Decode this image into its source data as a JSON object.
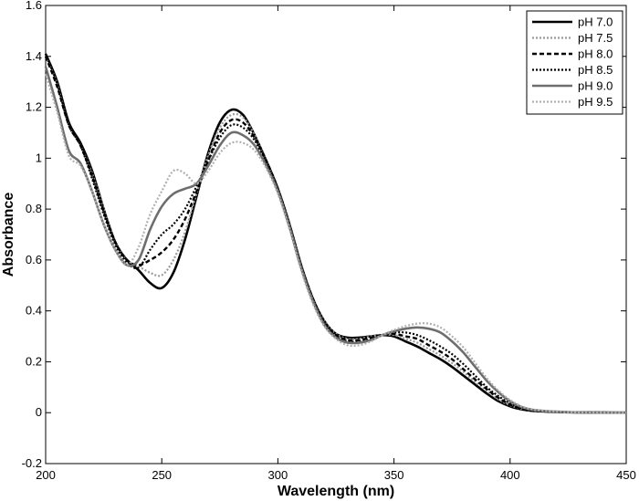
{
  "chart_data": {
    "type": "line",
    "xlabel": "Wavelength (nm)",
    "ylabel": "Absorbance",
    "xlim": [
      200,
      450
    ],
    "ylim": [
      -0.2,
      1.6
    ],
    "xticks": [
      200,
      250,
      300,
      350,
      400,
      450
    ],
    "yticks": [
      -0.2,
      0,
      0.2,
      0.4,
      0.6,
      0.8,
      1,
      1.2,
      1.4,
      1.6
    ],
    "ytick_labels": [
      "-0.2",
      "0",
      "0.2",
      "0.4",
      "0.6",
      "0.8",
      "1",
      "1.2",
      "1.4",
      "1.6"
    ],
    "grid": false,
    "legend_position": "top-right",
    "series": [
      {
        "name": "pH 7.0",
        "color": "#000000",
        "style": "solid",
        "points": [
          [
            200,
            1.41
          ],
          [
            205,
            1.3
          ],
          [
            210,
            1.14
          ],
          [
            215,
            1.06
          ],
          [
            220,
            0.95
          ],
          [
            225,
            0.8
          ],
          [
            230,
            0.67
          ],
          [
            235,
            0.6
          ],
          [
            240,
            0.56
          ],
          [
            245,
            0.51
          ],
          [
            250,
            0.49
          ],
          [
            255,
            0.55
          ],
          [
            260,
            0.68
          ],
          [
            265,
            0.85
          ],
          [
            270,
            1.02
          ],
          [
            275,
            1.14
          ],
          [
            280,
            1.19
          ],
          [
            285,
            1.17
          ],
          [
            290,
            1.09
          ],
          [
            295,
            0.99
          ],
          [
            300,
            0.88
          ],
          [
            305,
            0.74
          ],
          [
            310,
            0.58
          ],
          [
            315,
            0.45
          ],
          [
            320,
            0.36
          ],
          [
            325,
            0.31
          ],
          [
            330,
            0.295
          ],
          [
            335,
            0.295
          ],
          [
            340,
            0.3
          ],
          [
            345,
            0.305
          ],
          [
            350,
            0.3
          ],
          [
            355,
            0.28
          ],
          [
            360,
            0.26
          ],
          [
            365,
            0.235
          ],
          [
            370,
            0.21
          ],
          [
            375,
            0.18
          ],
          [
            380,
            0.145
          ],
          [
            385,
            0.11
          ],
          [
            390,
            0.075
          ],
          [
            395,
            0.045
          ],
          [
            400,
            0.025
          ],
          [
            405,
            0.013
          ],
          [
            410,
            0.007
          ],
          [
            420,
            0.003
          ],
          [
            430,
            0.001
          ],
          [
            450,
            0
          ]
        ]
      },
      {
        "name": "pH 7.5",
        "color": "#9a9a9a",
        "style": "dotted",
        "points": [
          [
            200,
            1.4
          ],
          [
            205,
            1.29
          ],
          [
            210,
            1.13
          ],
          [
            215,
            1.05
          ],
          [
            220,
            0.94
          ],
          [
            225,
            0.8
          ],
          [
            230,
            0.67
          ],
          [
            235,
            0.6
          ],
          [
            240,
            0.575
          ],
          [
            245,
            0.55
          ],
          [
            250,
            0.54
          ],
          [
            255,
            0.6
          ],
          [
            260,
            0.71
          ],
          [
            265,
            0.86
          ],
          [
            270,
            1.01
          ],
          [
            275,
            1.12
          ],
          [
            280,
            1.17
          ],
          [
            285,
            1.16
          ],
          [
            290,
            1.09
          ],
          [
            295,
            0.99
          ],
          [
            300,
            0.88
          ],
          [
            305,
            0.74
          ],
          [
            310,
            0.58
          ],
          [
            315,
            0.45
          ],
          [
            320,
            0.36
          ],
          [
            325,
            0.31
          ],
          [
            330,
            0.29
          ],
          [
            335,
            0.29
          ],
          [
            340,
            0.3
          ],
          [
            345,
            0.305
          ],
          [
            350,
            0.305
          ],
          [
            355,
            0.29
          ],
          [
            360,
            0.275
          ],
          [
            365,
            0.25
          ],
          [
            370,
            0.225
          ],
          [
            375,
            0.195
          ],
          [
            380,
            0.16
          ],
          [
            385,
            0.12
          ],
          [
            390,
            0.085
          ],
          [
            395,
            0.052
          ],
          [
            400,
            0.029
          ],
          [
            405,
            0.015
          ],
          [
            410,
            0.008
          ],
          [
            420,
            0.003
          ],
          [
            430,
            0.001
          ],
          [
            450,
            0
          ]
        ]
      },
      {
        "name": "pH 8.0",
        "color": "#000000",
        "style": "dashed",
        "points": [
          [
            200,
            1.4
          ],
          [
            205,
            1.28
          ],
          [
            210,
            1.13
          ],
          [
            215,
            1.05
          ],
          [
            220,
            0.93
          ],
          [
            225,
            0.79
          ],
          [
            230,
            0.67
          ],
          [
            235,
            0.6
          ],
          [
            240,
            0.58
          ],
          [
            245,
            0.6
          ],
          [
            250,
            0.63
          ],
          [
            255,
            0.68
          ],
          [
            260,
            0.76
          ],
          [
            265,
            0.87
          ],
          [
            270,
            0.99
          ],
          [
            275,
            1.1
          ],
          [
            280,
            1.15
          ],
          [
            285,
            1.14
          ],
          [
            290,
            1.08
          ],
          [
            295,
            0.99
          ],
          [
            300,
            0.88
          ],
          [
            305,
            0.74
          ],
          [
            310,
            0.58
          ],
          [
            315,
            0.45
          ],
          [
            320,
            0.355
          ],
          [
            325,
            0.305
          ],
          [
            330,
            0.285
          ],
          [
            335,
            0.285
          ],
          [
            340,
            0.295
          ],
          [
            345,
            0.305
          ],
          [
            350,
            0.31
          ],
          [
            355,
            0.3
          ],
          [
            360,
            0.29
          ],
          [
            365,
            0.265
          ],
          [
            370,
            0.24
          ],
          [
            375,
            0.21
          ],
          [
            380,
            0.17
          ],
          [
            385,
            0.13
          ],
          [
            390,
            0.092
          ],
          [
            395,
            0.058
          ],
          [
            400,
            0.032
          ],
          [
            405,
            0.016
          ],
          [
            410,
            0.008
          ],
          [
            420,
            0.003
          ],
          [
            430,
            0.001
          ],
          [
            450,
            0
          ]
        ]
      },
      {
        "name": "pH 8.5",
        "color": "#000000",
        "style": "dotted",
        "points": [
          [
            200,
            1.41
          ],
          [
            205,
            1.29
          ],
          [
            210,
            1.13
          ],
          [
            215,
            1.05
          ],
          [
            220,
            0.92
          ],
          [
            225,
            0.78
          ],
          [
            230,
            0.66
          ],
          [
            235,
            0.59
          ],
          [
            240,
            0.57
          ],
          [
            245,
            0.64
          ],
          [
            250,
            0.7
          ],
          [
            255,
            0.74
          ],
          [
            260,
            0.8
          ],
          [
            265,
            0.89
          ],
          [
            270,
            0.99
          ],
          [
            275,
            1.08
          ],
          [
            280,
            1.13
          ],
          [
            285,
            1.12
          ],
          [
            290,
            1.07
          ],
          [
            295,
            0.98
          ],
          [
            300,
            0.88
          ],
          [
            305,
            0.74
          ],
          [
            310,
            0.58
          ],
          [
            315,
            0.44
          ],
          [
            320,
            0.35
          ],
          [
            325,
            0.3
          ],
          [
            330,
            0.28
          ],
          [
            335,
            0.28
          ],
          [
            340,
            0.29
          ],
          [
            345,
            0.305
          ],
          [
            350,
            0.315
          ],
          [
            355,
            0.315
          ],
          [
            360,
            0.305
          ],
          [
            365,
            0.285
          ],
          [
            370,
            0.26
          ],
          [
            375,
            0.23
          ],
          [
            380,
            0.19
          ],
          [
            385,
            0.145
          ],
          [
            390,
            0.1
          ],
          [
            395,
            0.065
          ],
          [
            400,
            0.036
          ],
          [
            405,
            0.018
          ],
          [
            410,
            0.009
          ],
          [
            420,
            0.003
          ],
          [
            430,
            0.001
          ],
          [
            450,
            0
          ]
        ]
      },
      {
        "name": "pH 9.0",
        "color": "#6e6e6e",
        "style": "solid",
        "points": [
          [
            200,
            1.36
          ],
          [
            205,
            1.2
          ],
          [
            210,
            1.03
          ],
          [
            215,
            0.98
          ],
          [
            220,
            0.87
          ],
          [
            225,
            0.74
          ],
          [
            230,
            0.64
          ],
          [
            235,
            0.58
          ],
          [
            240,
            0.6
          ],
          [
            245,
            0.72
          ],
          [
            250,
            0.81
          ],
          [
            255,
            0.86
          ],
          [
            260,
            0.88
          ],
          [
            265,
            0.9
          ],
          [
            270,
            0.97
          ],
          [
            275,
            1.05
          ],
          [
            280,
            1.1
          ],
          [
            285,
            1.09
          ],
          [
            290,
            1.05
          ],
          [
            295,
            0.97
          ],
          [
            300,
            0.87
          ],
          [
            305,
            0.73
          ],
          [
            310,
            0.57
          ],
          [
            315,
            0.44
          ],
          [
            320,
            0.345
          ],
          [
            325,
            0.295
          ],
          [
            330,
            0.275
          ],
          [
            335,
            0.275
          ],
          [
            340,
            0.285
          ],
          [
            345,
            0.305
          ],
          [
            350,
            0.32
          ],
          [
            355,
            0.33
          ],
          [
            360,
            0.335
          ],
          [
            365,
            0.33
          ],
          [
            370,
            0.315
          ],
          [
            375,
            0.28
          ],
          [
            380,
            0.235
          ],
          [
            385,
            0.18
          ],
          [
            390,
            0.125
          ],
          [
            395,
            0.08
          ],
          [
            400,
            0.045
          ],
          [
            405,
            0.022
          ],
          [
            410,
            0.011
          ],
          [
            420,
            0.004
          ],
          [
            430,
            0.001
          ],
          [
            450,
            0
          ]
        ]
      },
      {
        "name": "pH 9.5",
        "color": "#b0b0b0",
        "style": "dotted",
        "points": [
          [
            200,
            1.33
          ],
          [
            205,
            1.18
          ],
          [
            210,
            1.01
          ],
          [
            215,
            0.97
          ],
          [
            220,
            0.87
          ],
          [
            225,
            0.74
          ],
          [
            230,
            0.64
          ],
          [
            235,
            0.58
          ],
          [
            240,
            0.65
          ],
          [
            245,
            0.78
          ],
          [
            250,
            0.87
          ],
          [
            255,
            0.95
          ],
          [
            260,
            0.94
          ],
          [
            265,
            0.9
          ],
          [
            270,
            0.95
          ],
          [
            275,
            1.02
          ],
          [
            280,
            1.06
          ],
          [
            285,
            1.06
          ],
          [
            290,
            1.03
          ],
          [
            295,
            0.96
          ],
          [
            300,
            0.86
          ],
          [
            305,
            0.72
          ],
          [
            310,
            0.56
          ],
          [
            315,
            0.43
          ],
          [
            320,
            0.34
          ],
          [
            325,
            0.29
          ],
          [
            330,
            0.265
          ],
          [
            335,
            0.265
          ],
          [
            340,
            0.28
          ],
          [
            345,
            0.305
          ],
          [
            350,
            0.325
          ],
          [
            355,
            0.34
          ],
          [
            360,
            0.35
          ],
          [
            365,
            0.35
          ],
          [
            370,
            0.335
          ],
          [
            375,
            0.3
          ],
          [
            380,
            0.255
          ],
          [
            385,
            0.195
          ],
          [
            390,
            0.135
          ],
          [
            395,
            0.087
          ],
          [
            400,
            0.05
          ],
          [
            405,
            0.025
          ],
          [
            410,
            0.012
          ],
          [
            420,
            0.004
          ],
          [
            430,
            0.001
          ],
          [
            450,
            0
          ]
        ]
      }
    ]
  }
}
